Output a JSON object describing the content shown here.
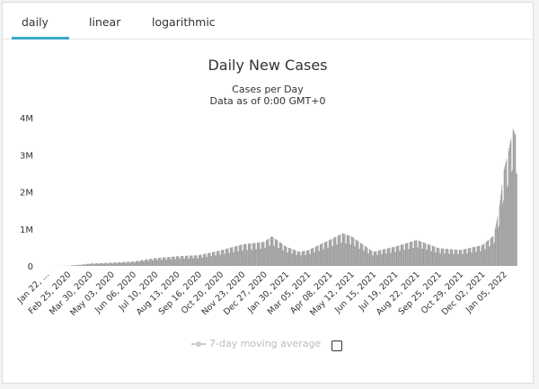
{
  "tabs": [
    {
      "label": "daily",
      "active": true
    },
    {
      "label": "linear",
      "active": false
    },
    {
      "label": "logarithmic",
      "active": false
    }
  ],
  "legend": {
    "label": "7-day moving average",
    "checked": false
  },
  "colors": {
    "accent": "#3aa9c9",
    "bars": "#9a9a9a"
  },
  "chart_data": {
    "type": "bar",
    "title": "Daily New Cases",
    "subtitle_line1": "Cases per Day",
    "subtitle_line2": "Data as of 0:00 GMT+0",
    "xlabel": "",
    "ylabel": "",
    "ylim": [
      0,
      4000000
    ],
    "y_ticks": [
      0,
      1000000,
      2000000,
      3000000,
      4000000
    ],
    "y_tick_labels": [
      "0",
      "1M",
      "2M",
      "3M",
      "4M"
    ],
    "x_tick_labels": [
      "Jan 22, ...",
      "Feb 25, 2020",
      "Mar 30, 2020",
      "May 03, 2020",
      "Jun 06, 2020",
      "Jul 10, 2020",
      "Aug 13, 2020",
      "Sep 16, 2020",
      "Oct 20, 2020",
      "Nov 23, 2020",
      "Dec 27, 2020",
      "Jan 30, 2021",
      "Mar 05, 2021",
      "Apr 08, 2021",
      "May 12, 2021",
      "Jun 15, 2021",
      "Jul 19, 2021",
      "Aug 22, 2021",
      "Sep 25, 2021",
      "Oct 29, 2021",
      "Dec 02, 2021",
      "Jan 05, 2022"
    ],
    "grid": false,
    "legend_position": "bottom-center",
    "series": [
      {
        "name": "Daily New Cases",
        "x_start": "2020-01-22",
        "x_end": "2022-01-25",
        "points": [
          [
            "2020-01-22",
            0
          ],
          [
            "2020-02-25",
            4000
          ],
          [
            "2020-03-20",
            40000
          ],
          [
            "2020-03-30",
            65000
          ],
          [
            "2020-05-03",
            85000
          ],
          [
            "2020-06-06",
            120000
          ],
          [
            "2020-07-10",
            210000
          ],
          [
            "2020-08-13",
            260000
          ],
          [
            "2020-09-16",
            290000
          ],
          [
            "2020-10-20",
            420000
          ],
          [
            "2020-11-23",
            580000
          ],
          [
            "2020-12-27",
            650000
          ],
          [
            "2021-01-08",
            800000
          ],
          [
            "2021-01-30",
            520000
          ],
          [
            "2021-02-20",
            380000
          ],
          [
            "2021-03-05",
            420000
          ],
          [
            "2021-04-08",
            700000
          ],
          [
            "2021-04-28",
            880000
          ],
          [
            "2021-05-12",
            800000
          ],
          [
            "2021-06-15",
            380000
          ],
          [
            "2021-07-19",
            520000
          ],
          [
            "2021-08-22",
            700000
          ],
          [
            "2021-09-25",
            480000
          ],
          [
            "2021-10-29",
            430000
          ],
          [
            "2021-12-02",
            560000
          ],
          [
            "2021-12-20",
            820000
          ],
          [
            "2021-12-28",
            1500000
          ],
          [
            "2022-01-05",
            2600000
          ],
          [
            "2022-01-12",
            3100000
          ],
          [
            "2022-01-19",
            3700000
          ],
          [
            "2022-01-25",
            3450000
          ]
        ]
      }
    ]
  }
}
